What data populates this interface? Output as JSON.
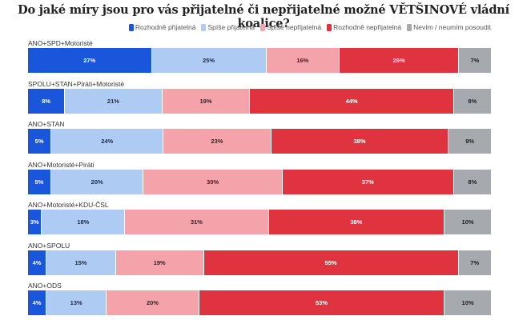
{
  "chart_data": {
    "type": "bar",
    "orientation": "horizontal-stacked-100",
    "title": "Do jaké míry jsou pro vás přijatelné či nepřijatelné možné VĚTŠINOVÉ vládní koalice?",
    "legend": {
      "placement": "top-right",
      "entries": [
        {
          "name": "Rozhodně přijatelná",
          "color": "#1a56db"
        },
        {
          "name": "Spíše přijatelná",
          "color": "#aecbf4"
        },
        {
          "name": "Spíše nepřijatelná",
          "color": "#f4a3aa"
        },
        {
          "name": "Rozhodně nepřijatelná",
          "color": "#e03340"
        },
        {
          "name": "Nevím / neumím posoudit",
          "color": "#a6a9ae"
        }
      ]
    },
    "text_colors": [
      "#ffffff",
      "#1f2a44",
      "#3a1f22",
      "#ffffff",
      "#222222"
    ],
    "categories": [
      "ANO+SPD+Motoristé",
      "SPOLU+STAN+Piráti+Motoristé",
      "ANO+STAN",
      "ANO+Motoristé+Piráti",
      "ANO+Motoristé+KDU-ČSL",
      "ANO+SPOLU",
      "ANO+ODS"
    ],
    "series": [
      {
        "name": "Rozhodně přijatelná",
        "values": [
          27,
          8,
          5,
          5,
          3,
          4,
          4
        ]
      },
      {
        "name": "Spíše přijatelná",
        "values": [
          25,
          21,
          24,
          20,
          18,
          15,
          13
        ]
      },
      {
        "name": "Spíše nepřijatelná",
        "values": [
          16,
          19,
          23,
          30,
          31,
          19,
          20
        ]
      },
      {
        "name": "Rozhodně nepřijatelná",
        "values": [
          26,
          44,
          38,
          37,
          38,
          55,
          53
        ]
      },
      {
        "name": "Nevím / neumím posoudit",
        "values": [
          7,
          8,
          9,
          8,
          10,
          7,
          10
        ]
      }
    ],
    "value_suffix": "%",
    "xlabel": "",
    "ylabel": "",
    "xlim": [
      0,
      100
    ],
    "grid": false
  }
}
